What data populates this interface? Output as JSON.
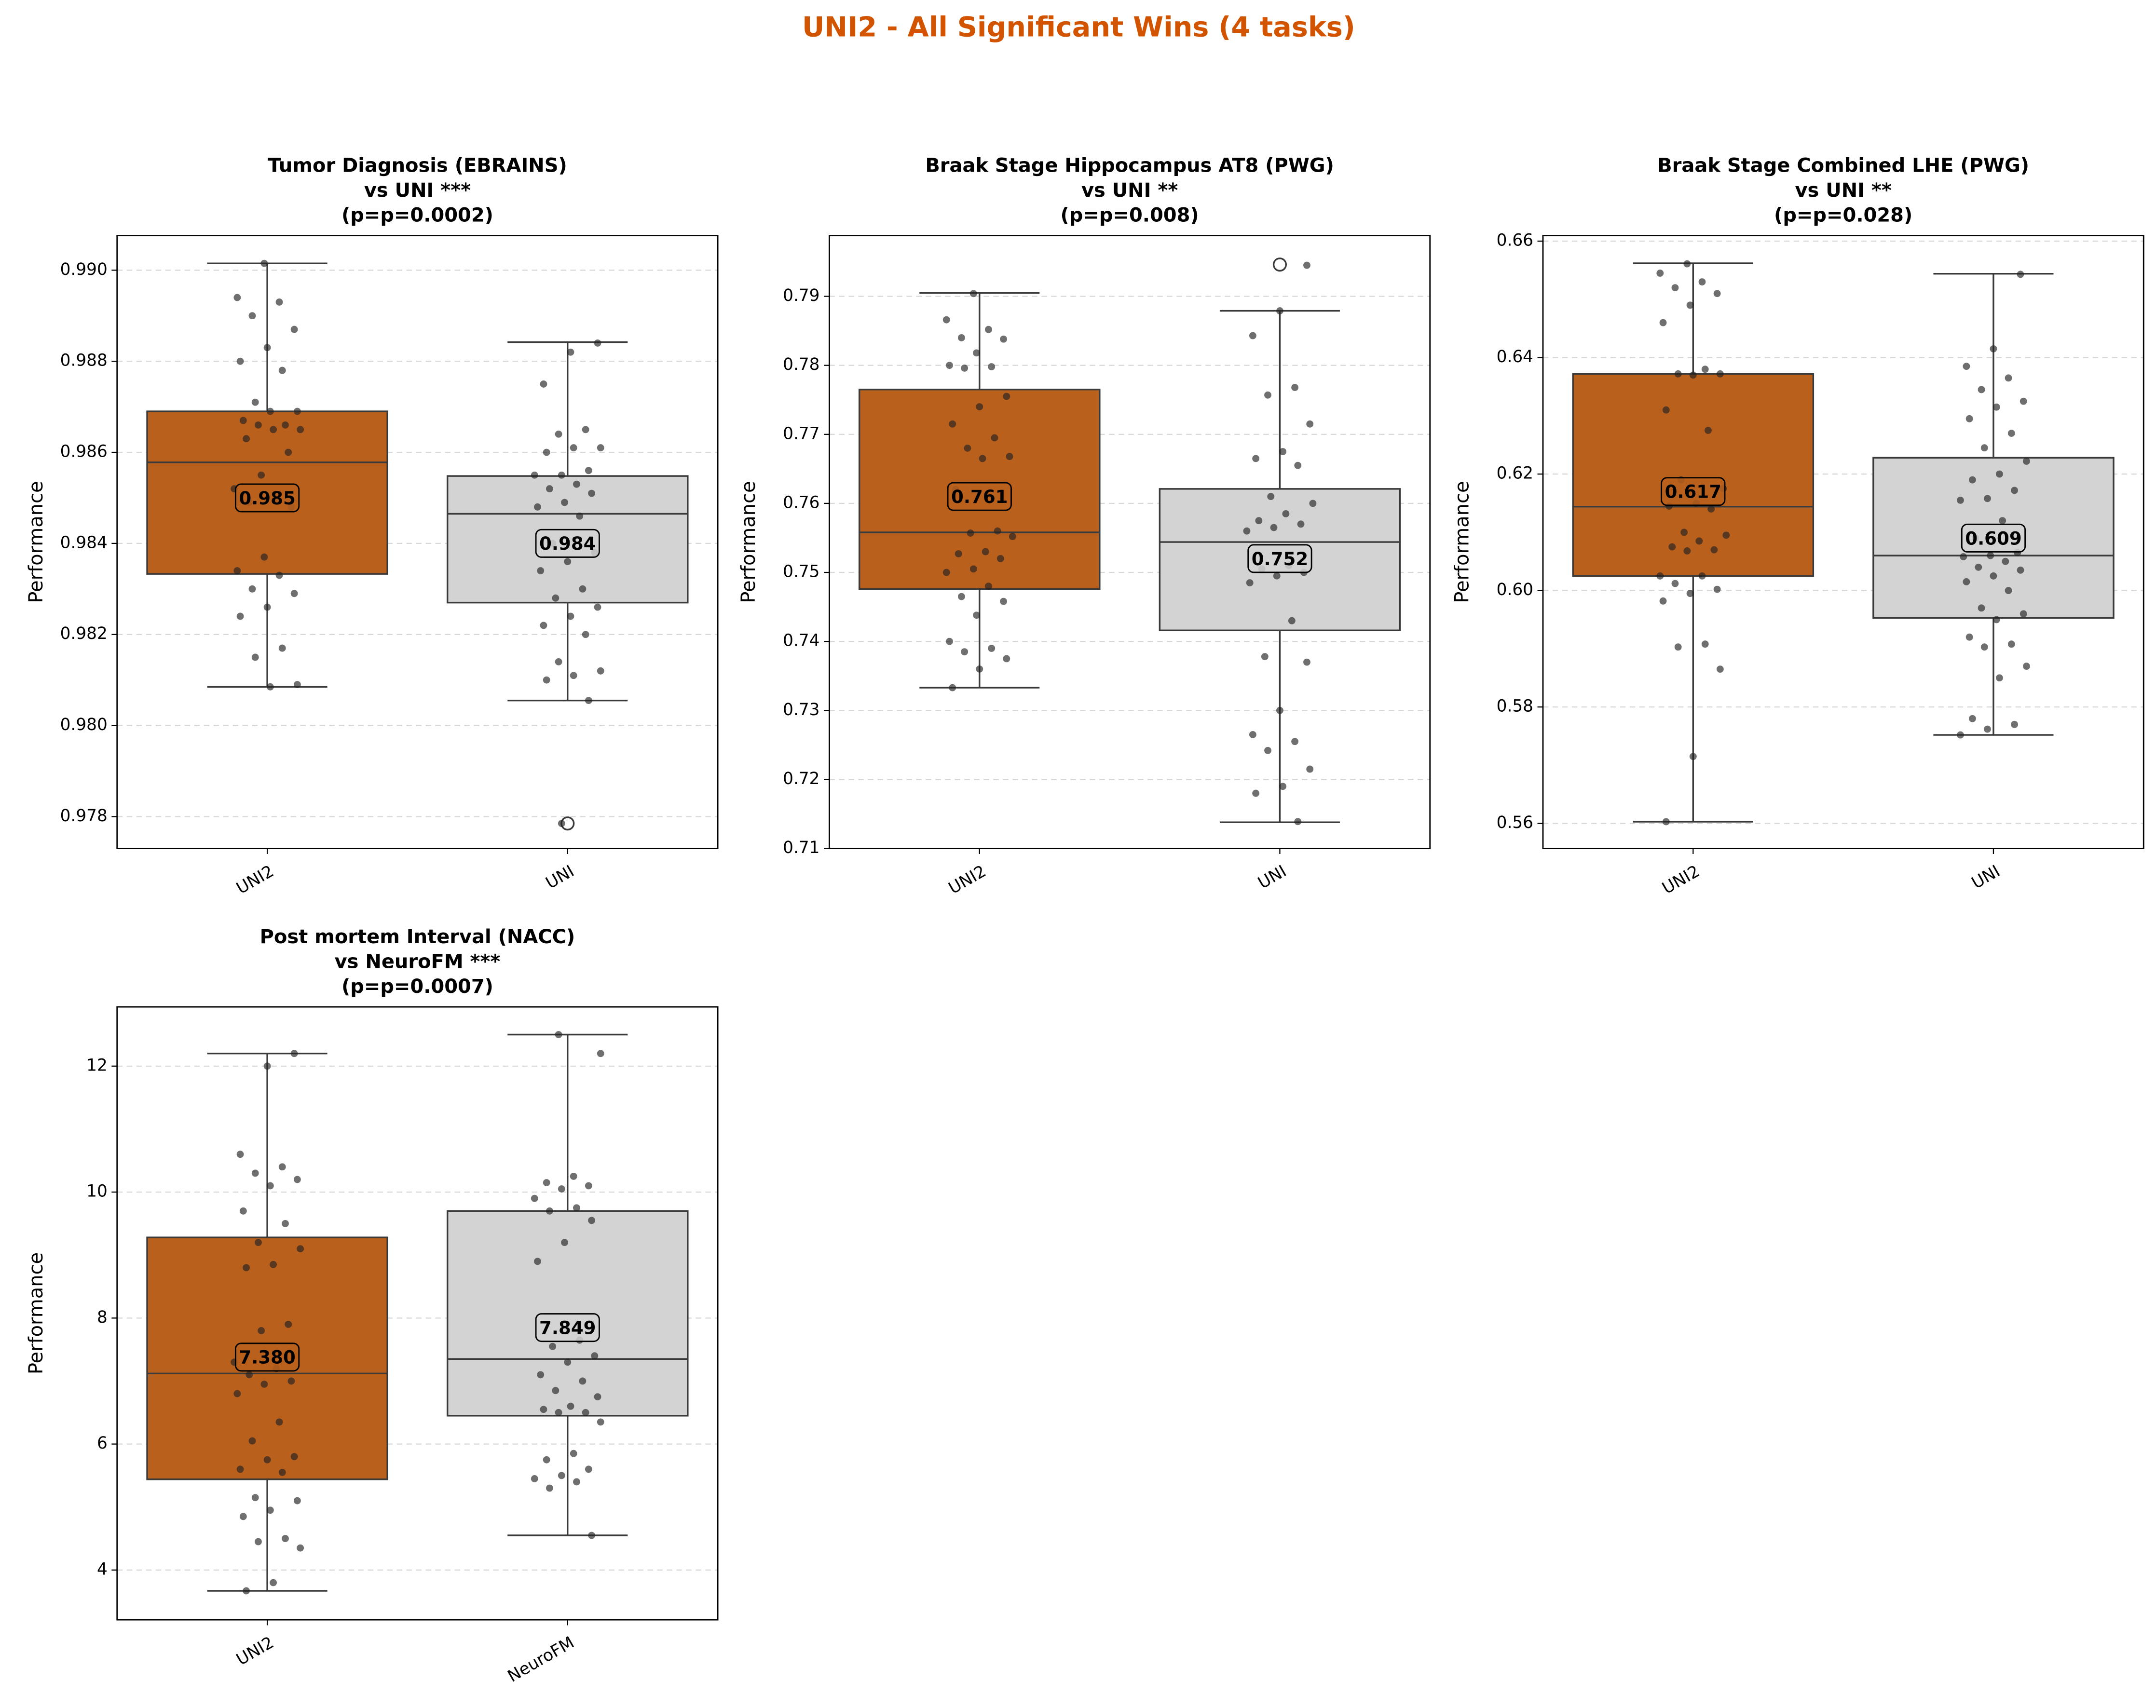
{
  "suptitle": "UNI2 - All Significant Wins (4 tasks)",
  "suptitle_color": "#d35400",
  "chart_data": [
    {
      "type": "box",
      "title": [
        "Tumor Diagnosis (EBRAINS)",
        "vs UNI ***",
        "(p=p=0.0002)"
      ],
      "ylabel": "Performance",
      "grid": true,
      "ylim": [
        0.9773,
        0.99076
      ],
      "yticks": [
        0.978,
        {
          "value": 0.98,
          "label": "0.980"
        },
        0.982,
        0.984,
        0.986,
        0.988,
        {
          "value": 0.99,
          "label": "0.990"
        }
      ],
      "boxes": [
        {
          "name": "UNI2",
          "color": "#b9601d",
          "whislo": 0.98085,
          "q1": 0.98333,
          "median": 0.98578,
          "q3": 0.9869,
          "whishi": 0.99015,
          "fliers": [],
          "mean": 0.985,
          "mean_label": "0.985",
          "points": [
            0.99015,
            0.9894,
            0.9893,
            0.989,
            0.9887,
            0.9883,
            0.988,
            0.9878,
            0.9871,
            0.9869,
            0.9869,
            0.9867,
            0.9866,
            0.9866,
            0.9865,
            0.9865,
            0.9863,
            0.986,
            0.9855,
            0.9852,
            0.985,
            0.9849,
            0.9848,
            0.9837,
            0.9834,
            0.9833,
            0.983,
            0.9829,
            0.9826,
            0.9824,
            0.9817,
            0.9815,
            0.9809,
            0.98085
          ]
        },
        {
          "name": "UNI",
          "color": "#d3d3d3",
          "whislo": 0.98055,
          "q1": 0.9827,
          "median": 0.98465,
          "q3": 0.98548,
          "whishi": 0.98842,
          "fliers": [
            0.97785
          ],
          "mean": 0.984,
          "mean_label": "0.984",
          "points": [
            0.9884,
            0.9882,
            0.9875,
            0.9865,
            0.9864,
            0.9861,
            0.9861,
            0.986,
            0.9856,
            0.9855,
            0.9855,
            0.9853,
            0.9852,
            0.9851,
            0.9849,
            0.9848,
            0.9846,
            0.984,
            0.9838,
            0.9836,
            0.9834,
            0.983,
            0.9828,
            0.9826,
            0.9824,
            0.9822,
            0.982,
            0.9814,
            0.9812,
            0.9811,
            0.981,
            0.98055,
            0.97785
          ]
        }
      ]
    },
    {
      "type": "box",
      "title": [
        "Braak Stage Hippocampus AT8 (PWG)",
        "vs UNI **",
        "(p=p=0.008)"
      ],
      "ylabel": "Performance",
      "grid": true,
      "ylim": [
        0.71,
        0.7988
      ],
      "yticks": [
        0.71,
        0.72,
        0.73,
        0.74,
        0.75,
        0.76,
        0.77,
        0.78,
        0.79
      ],
      "boxes": [
        {
          "name": "UNI2",
          "color": "#b9601d",
          "whislo": 0.7333,
          "q1": 0.7476,
          "median": 0.7558,
          "q3": 0.7765,
          "whishi": 0.7905,
          "fliers": [],
          "mean": 0.761,
          "mean_label": "0.761",
          "points": [
            0.7904,
            0.7866,
            0.7852,
            0.784,
            0.7838,
            0.7818,
            0.78,
            0.7798,
            0.7796,
            0.7755,
            0.774,
            0.7715,
            0.7695,
            0.768,
            0.7668,
            0.7665,
            0.762,
            0.756,
            0.7557,
            0.7552,
            0.753,
            0.7527,
            0.752,
            0.7505,
            0.75,
            0.748,
            0.7465,
            0.7458,
            0.7438,
            0.74,
            0.739,
            0.7385,
            0.7375,
            0.736,
            0.7333
          ]
        },
        {
          "name": "UNI",
          "color": "#d3d3d3",
          "whislo": 0.7138,
          "q1": 0.7416,
          "median": 0.7544,
          "q3": 0.7621,
          "whishi": 0.7879,
          "fliers": [
            0.7946
          ],
          "mean": 0.752,
          "mean_label": "0.752",
          "points": [
            0.7945,
            0.7879,
            0.7843,
            0.7768,
            0.7757,
            0.7715,
            0.7675,
            0.7665,
            0.7655,
            0.761,
            0.76,
            0.7585,
            0.7575,
            0.757,
            0.7565,
            0.756,
            0.751,
            0.7505,
            0.75,
            0.7495,
            0.7485,
            0.743,
            0.7378,
            0.737,
            0.73,
            0.7265,
            0.7255,
            0.7242,
            0.7215,
            0.719,
            0.718,
            0.7139
          ]
        }
      ]
    },
    {
      "type": "box",
      "title": [
        "Braak Stage Combined LHE (PWG)",
        "vs UNI **",
        "(p=p=0.028)"
      ],
      "ylabel": "Performance",
      "grid": true,
      "ylim": [
        0.5557,
        0.66095
      ],
      "yticks": [
        0.56,
        0.58,
        {
          "value": 0.6,
          "label": "0.60"
        },
        0.62,
        0.64,
        0.66
      ],
      "boxes": [
        {
          "name": "UNI2",
          "color": "#b9601d",
          "whislo": 0.5603,
          "q1": 0.6025,
          "median": 0.6144,
          "q3": 0.6372,
          "whishi": 0.6562,
          "fliers": [],
          "mean": 0.617,
          "mean_label": "0.617",
          "points": [
            0.6561,
            0.6545,
            0.653,
            0.652,
            0.651,
            0.649,
            0.646,
            0.638,
            0.6372,
            0.6372,
            0.637,
            0.631,
            0.6275,
            0.619,
            0.6175,
            0.615,
            0.6145,
            0.614,
            0.61,
            0.6095,
            0.6085,
            0.6075,
            0.607,
            0.6068,
            0.6025,
            0.6025,
            0.6012,
            0.6002,
            0.5995,
            0.5982,
            0.5908,
            0.5903,
            0.5865,
            0.5715,
            0.5603
          ]
        },
        {
          "name": "UNI",
          "color": "#d3d3d3",
          "whislo": 0.5752,
          "q1": 0.5953,
          "median": 0.606,
          "q3": 0.6228,
          "whishi": 0.6544,
          "fliers": [],
          "mean": 0.609,
          "mean_label": "0.609",
          "points": [
            0.6543,
            0.6415,
            0.6385,
            0.6365,
            0.6345,
            0.6325,
            0.6315,
            0.6295,
            0.627,
            0.6245,
            0.6222,
            0.62,
            0.619,
            0.6172,
            0.6158,
            0.6155,
            0.612,
            0.609,
            0.6065,
            0.606,
            0.6058,
            0.605,
            0.604,
            0.6035,
            0.6025,
            0.6015,
            0.6,
            0.597,
            0.596,
            0.595,
            0.592,
            0.5908,
            0.5903,
            0.587,
            0.585,
            0.578,
            0.577,
            0.5762,
            0.5752
          ]
        }
      ]
    },
    {
      "type": "box",
      "title": [
        "Post mortem Interval (NACC)",
        "vs NeuroFM ***",
        "(p=p=0.0007)"
      ],
      "ylabel": "Performance",
      "grid": true,
      "ylim": [
        3.21,
        12.94
      ],
      "yticks": [
        4,
        6,
        8,
        10,
        12
      ],
      "boxes": [
        {
          "name": "UNI2",
          "color": "#b9601d",
          "whislo": 3.67,
          "q1": 5.44,
          "median": 7.12,
          "q3": 9.28,
          "whishi": 12.2,
          "fliers": [],
          "mean": 7.38,
          "mean_label": "7.380",
          "points": [
            12.2,
            12.0,
            10.6,
            10.4,
            10.3,
            10.2,
            10.1,
            9.7,
            9.5,
            9.2,
            9.1,
            8.85,
            8.8,
            7.9,
            7.8,
            7.3,
            7.2,
            7.1,
            7.0,
            6.95,
            6.8,
            6.35,
            6.05,
            5.8,
            5.75,
            5.6,
            5.55,
            5.15,
            5.1,
            4.95,
            4.85,
            4.5,
            4.45,
            4.35,
            3.8,
            3.67
          ]
        },
        {
          "name": "NeuroFM",
          "color": "#d3d3d3",
          "whislo": 4.55,
          "q1": 6.45,
          "median": 7.35,
          "q3": 9.7,
          "whishi": 12.5,
          "fliers": [],
          "mean": 7.849,
          "mean_label": "7.849",
          "points": [
            12.5,
            12.2,
            10.25,
            10.15,
            10.1,
            10.05,
            9.9,
            9.75,
            9.7,
            9.55,
            9.2,
            8.9,
            7.65,
            7.55,
            7.4,
            7.3,
            7.1,
            7.0,
            6.85,
            6.75,
            6.6,
            6.55,
            6.5,
            6.5,
            6.35,
            5.85,
            5.75,
            5.6,
            5.5,
            5.45,
            5.4,
            5.3,
            4.55
          ]
        }
      ]
    }
  ]
}
